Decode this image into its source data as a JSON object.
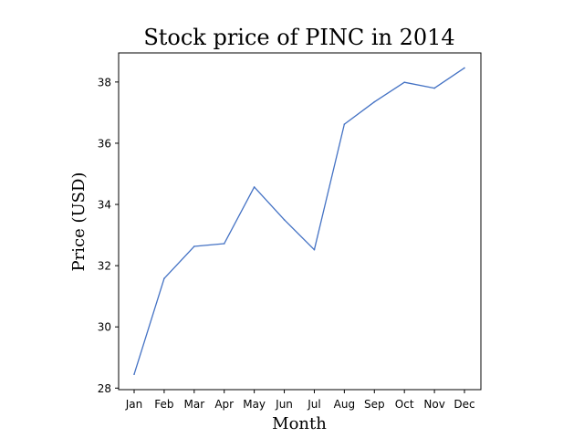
{
  "chart_data": {
    "type": "line",
    "title": "Stock price of PINC in 2014",
    "xlabel": "Month",
    "ylabel": "Price (USD)",
    "categories": [
      "Jan",
      "Feb",
      "Mar",
      "Apr",
      "May",
      "Jun",
      "Jul",
      "Aug",
      "Sep",
      "Oct",
      "Nov",
      "Dec"
    ],
    "series": [
      {
        "values": [
          28.45,
          31.58,
          32.63,
          32.72,
          34.57,
          33.5,
          32.52,
          36.62,
          37.35,
          37.99,
          37.8,
          38.46
        ]
      }
    ],
    "ylim": [
      27.95,
      38.95
    ],
    "yticks": [
      28,
      30,
      32,
      34,
      36,
      38
    ],
    "grid": false,
    "line_color": "#4472c4"
  }
}
